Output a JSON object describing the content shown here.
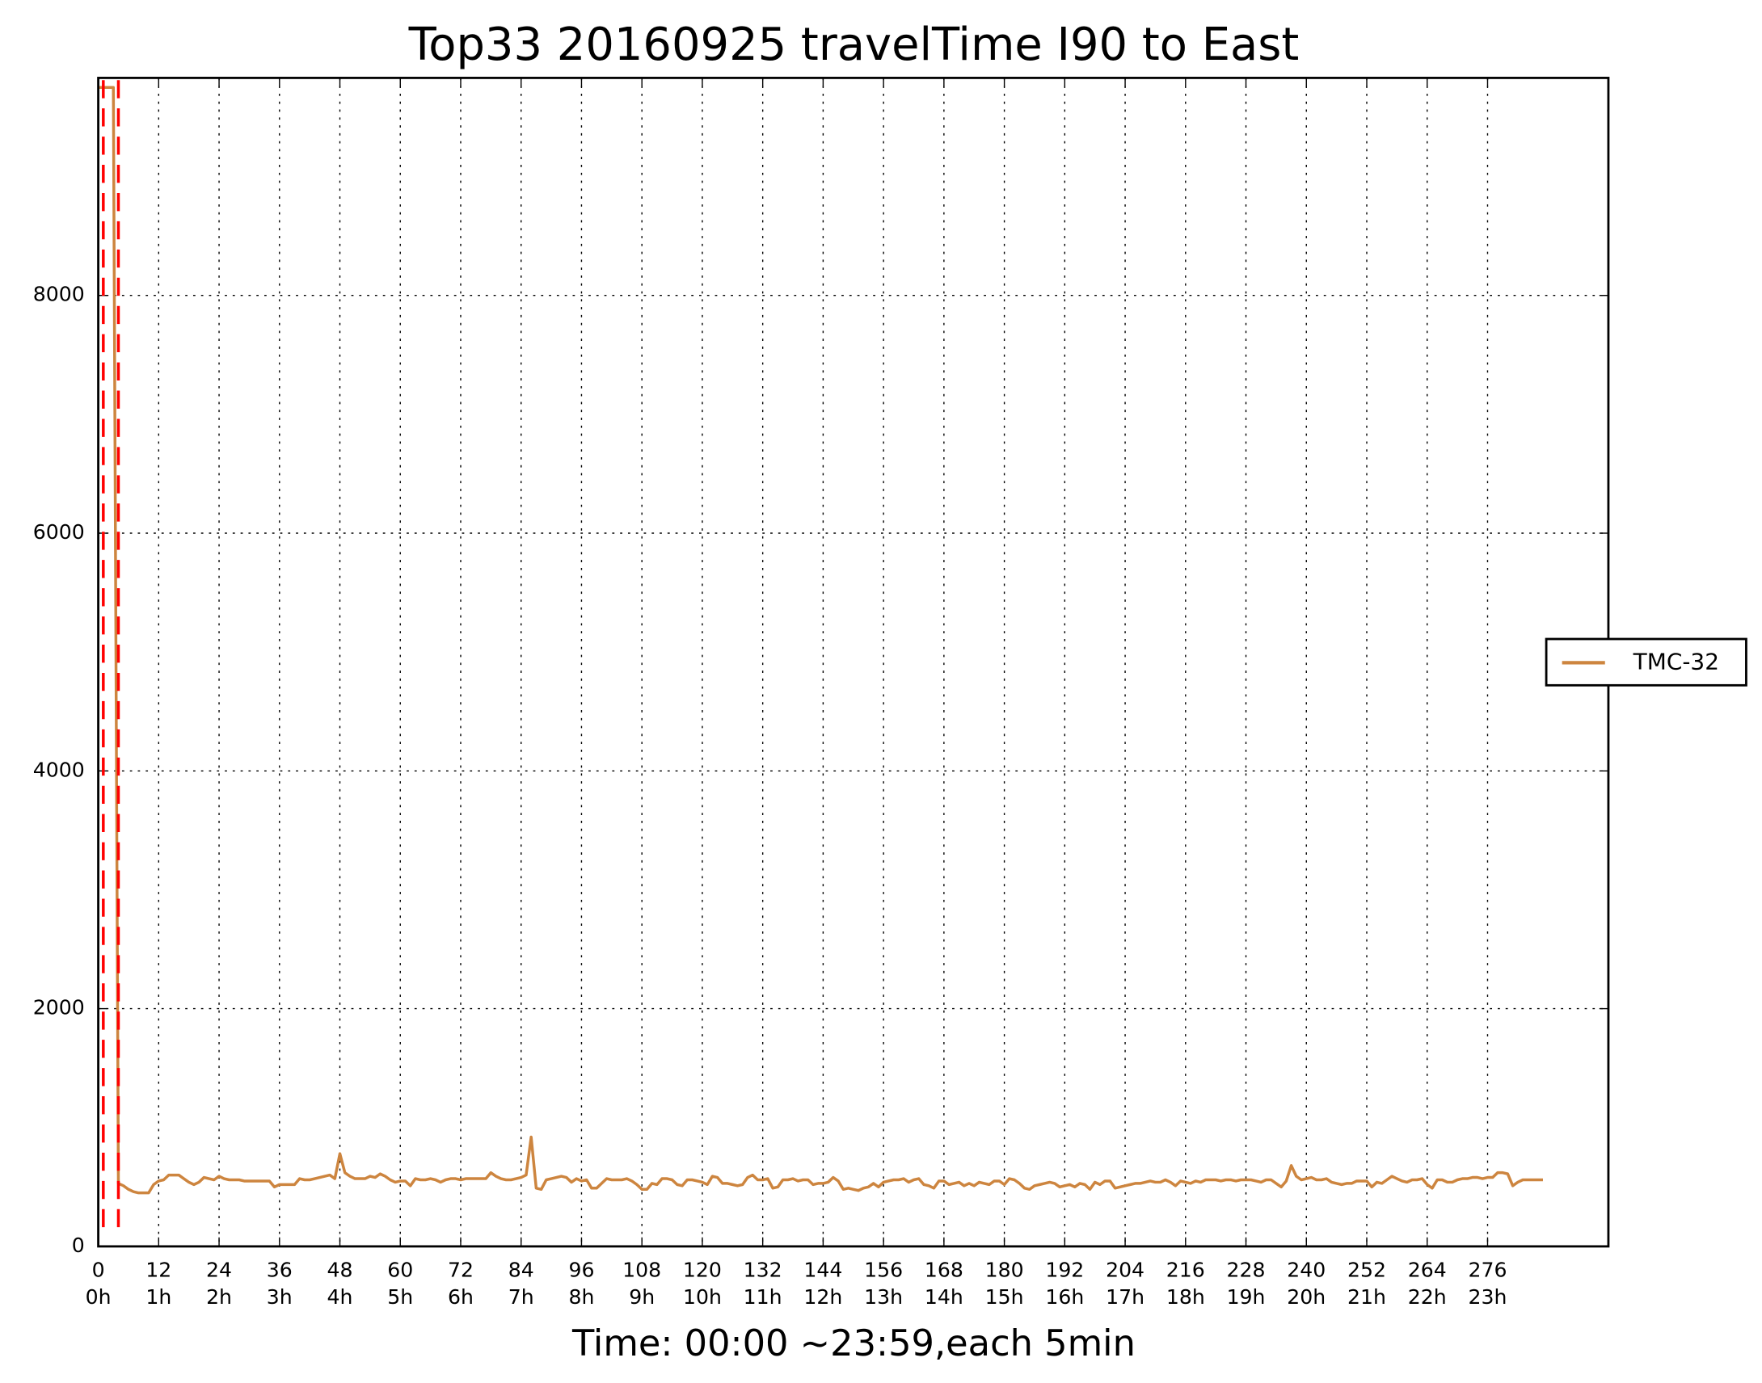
{
  "chart_data": {
    "type": "line",
    "title": "Top33 20160925 travelTime I90 to East",
    "x_label": "Time: 00:00 ~23:59,each 5min",
    "x": [
      0,
      1,
      2,
      3,
      4,
      5,
      6,
      7,
      8,
      9,
      10,
      11,
      12,
      13,
      14,
      15,
      16,
      17,
      18,
      19,
      20,
      21,
      22,
      23,
      24,
      25,
      26,
      27,
      28,
      29,
      30,
      31,
      32,
      33,
      34,
      35,
      36,
      37,
      38,
      39,
      40,
      41,
      42,
      43,
      44,
      45,
      46,
      47,
      48,
      49,
      50,
      51,
      52,
      53,
      54,
      55,
      56,
      57,
      58,
      59,
      60,
      61,
      62,
      63,
      64,
      65,
      66,
      67,
      68,
      69,
      70,
      71,
      72,
      73,
      74,
      75,
      76,
      77,
      78,
      79,
      80,
      81,
      82,
      83,
      84,
      85,
      86,
      87,
      88,
      89,
      90,
      91,
      92,
      93,
      94,
      95,
      96,
      97,
      98,
      99,
      100,
      101,
      102,
      103,
      104,
      105,
      106,
      107,
      108,
      109,
      110,
      111,
      112,
      113,
      114,
      115,
      116,
      117,
      118,
      119,
      120,
      121,
      122,
      123,
      124,
      125,
      126,
      127,
      128,
      129,
      130,
      131,
      132,
      133,
      134,
      135,
      136,
      137,
      138,
      139,
      140,
      141,
      142,
      143,
      144,
      145,
      146,
      147,
      148,
      149,
      150,
      151,
      152,
      153,
      154,
      155,
      156,
      157,
      158,
      159,
      160,
      161,
      162,
      163,
      164,
      165,
      166,
      167,
      168,
      169,
      170,
      171,
      172,
      173,
      174,
      175,
      176,
      177,
      178,
      179,
      180,
      181,
      182,
      183,
      184,
      185,
      186,
      187,
      188,
      189,
      190,
      191,
      192,
      193,
      194,
      195,
      196,
      197,
      198,
      199,
      200,
      201,
      202,
      203,
      204,
      205,
      206,
      207,
      208,
      209,
      210,
      211,
      212,
      213,
      214,
      215,
      216,
      217,
      218,
      219,
      220,
      221,
      222,
      223,
      224,
      225,
      226,
      227,
      228,
      229,
      230,
      231,
      232,
      233,
      234,
      235,
      236,
      237,
      238,
      239,
      240,
      241,
      242,
      243,
      244,
      245,
      246,
      247,
      248,
      249,
      250,
      251,
      252,
      253,
      254,
      255,
      256,
      257,
      258,
      259,
      260,
      261,
      262,
      263,
      264,
      265,
      266,
      267,
      268,
      269,
      270,
      271,
      272,
      273,
      274,
      275,
      276,
      277,
      278,
      279,
      280,
      281,
      282,
      283,
      284,
      285,
      286,
      287
    ],
    "series": [
      {
        "name": "TMC-32",
        "color": "#cd853f",
        "values": [
          9750,
          9750,
          9750,
          9750,
          530,
          510,
          480,
          460,
          450,
          450,
          450,
          520,
          550,
          560,
          600,
          600,
          600,
          570,
          540,
          520,
          540,
          580,
          570,
          560,
          590,
          570,
          560,
          560,
          560,
          550,
          550,
          550,
          550,
          550,
          550,
          500,
          520,
          520,
          520,
          520,
          570,
          560,
          560,
          570,
          580,
          590,
          600,
          570,
          780,
          620,
          590,
          570,
          570,
          570,
          590,
          580,
          610,
          590,
          560,
          540,
          550,
          550,
          510,
          570,
          560,
          560,
          570,
          560,
          540,
          560,
          570,
          570,
          560,
          570,
          570,
          570,
          570,
          570,
          620,
          590,
          570,
          560,
          560,
          570,
          580,
          600,
          920,
          490,
          480,
          560,
          570,
          580,
          590,
          580,
          540,
          570,
          550,
          560,
          490,
          490,
          530,
          570,
          560,
          560,
          560,
          570,
          550,
          520,
          480,
          480,
          530,
          520,
          570,
          570,
          560,
          520,
          510,
          560,
          560,
          550,
          540,
          520,
          590,
          580,
          530,
          530,
          520,
          510,
          520,
          580,
          600,
          560,
          560,
          570,
          490,
          500,
          560,
          560,
          570,
          550,
          560,
          560,
          520,
          530,
          530,
          540,
          580,
          550,
          480,
          490,
          480,
          470,
          490,
          500,
          530,
          500,
          540,
          550,
          560,
          560,
          570,
          540,
          560,
          570,
          520,
          510,
          490,
          550,
          550,
          520,
          530,
          540,
          510,
          530,
          510,
          540,
          530,
          520,
          550,
          550,
          520,
          570,
          560,
          530,
          490,
          480,
          510,
          520,
          530,
          540,
          530,
          500,
          510,
          520,
          500,
          530,
          520,
          480,
          540,
          520,
          550,
          550,
          490,
          500,
          510,
          520,
          530,
          530,
          540,
          550,
          540,
          540,
          560,
          540,
          510,
          550,
          540,
          530,
          550,
          540,
          560,
          560,
          560,
          550,
          560,
          560,
          550,
          560,
          560,
          560,
          550,
          540,
          560,
          560,
          530,
          500,
          550,
          680,
          590,
          560,
          570,
          580,
          560,
          560,
          570,
          540,
          530,
          520,
          530,
          530,
          550,
          550,
          550,
          500,
          540,
          530,
          560,
          590,
          570,
          550,
          540,
          560,
          560,
          570,
          520,
          490,
          560,
          560,
          540,
          540,
          560,
          570,
          570,
          580,
          580,
          570,
          580,
          580,
          620,
          620,
          610,
          510,
          540,
          560,
          560,
          560,
          560,
          560
        ]
      }
    ],
    "vlines": [
      1,
      4
    ],
    "vline_color": "#ff0000",
    "xlim": [
      0,
      300
    ],
    "ylim": [
      0,
      9830
    ],
    "xticks": [
      0,
      12,
      24,
      36,
      48,
      60,
      72,
      84,
      96,
      108,
      120,
      132,
      144,
      156,
      168,
      180,
      192,
      204,
      216,
      228,
      240,
      252,
      264,
      276
    ],
    "xtick_hours": [
      "0h",
      "1h",
      "2h",
      "3h",
      "4h",
      "5h",
      "6h",
      "7h",
      "8h",
      "9h",
      "10h",
      "11h",
      "12h",
      "13h",
      "14h",
      "15h",
      "16h",
      "17h",
      "18h",
      "19h",
      "20h",
      "21h",
      "22h",
      "23h"
    ],
    "yticks": [
      0,
      2000,
      4000,
      6000,
      8000
    ],
    "grid": true,
    "legend": "right"
  }
}
